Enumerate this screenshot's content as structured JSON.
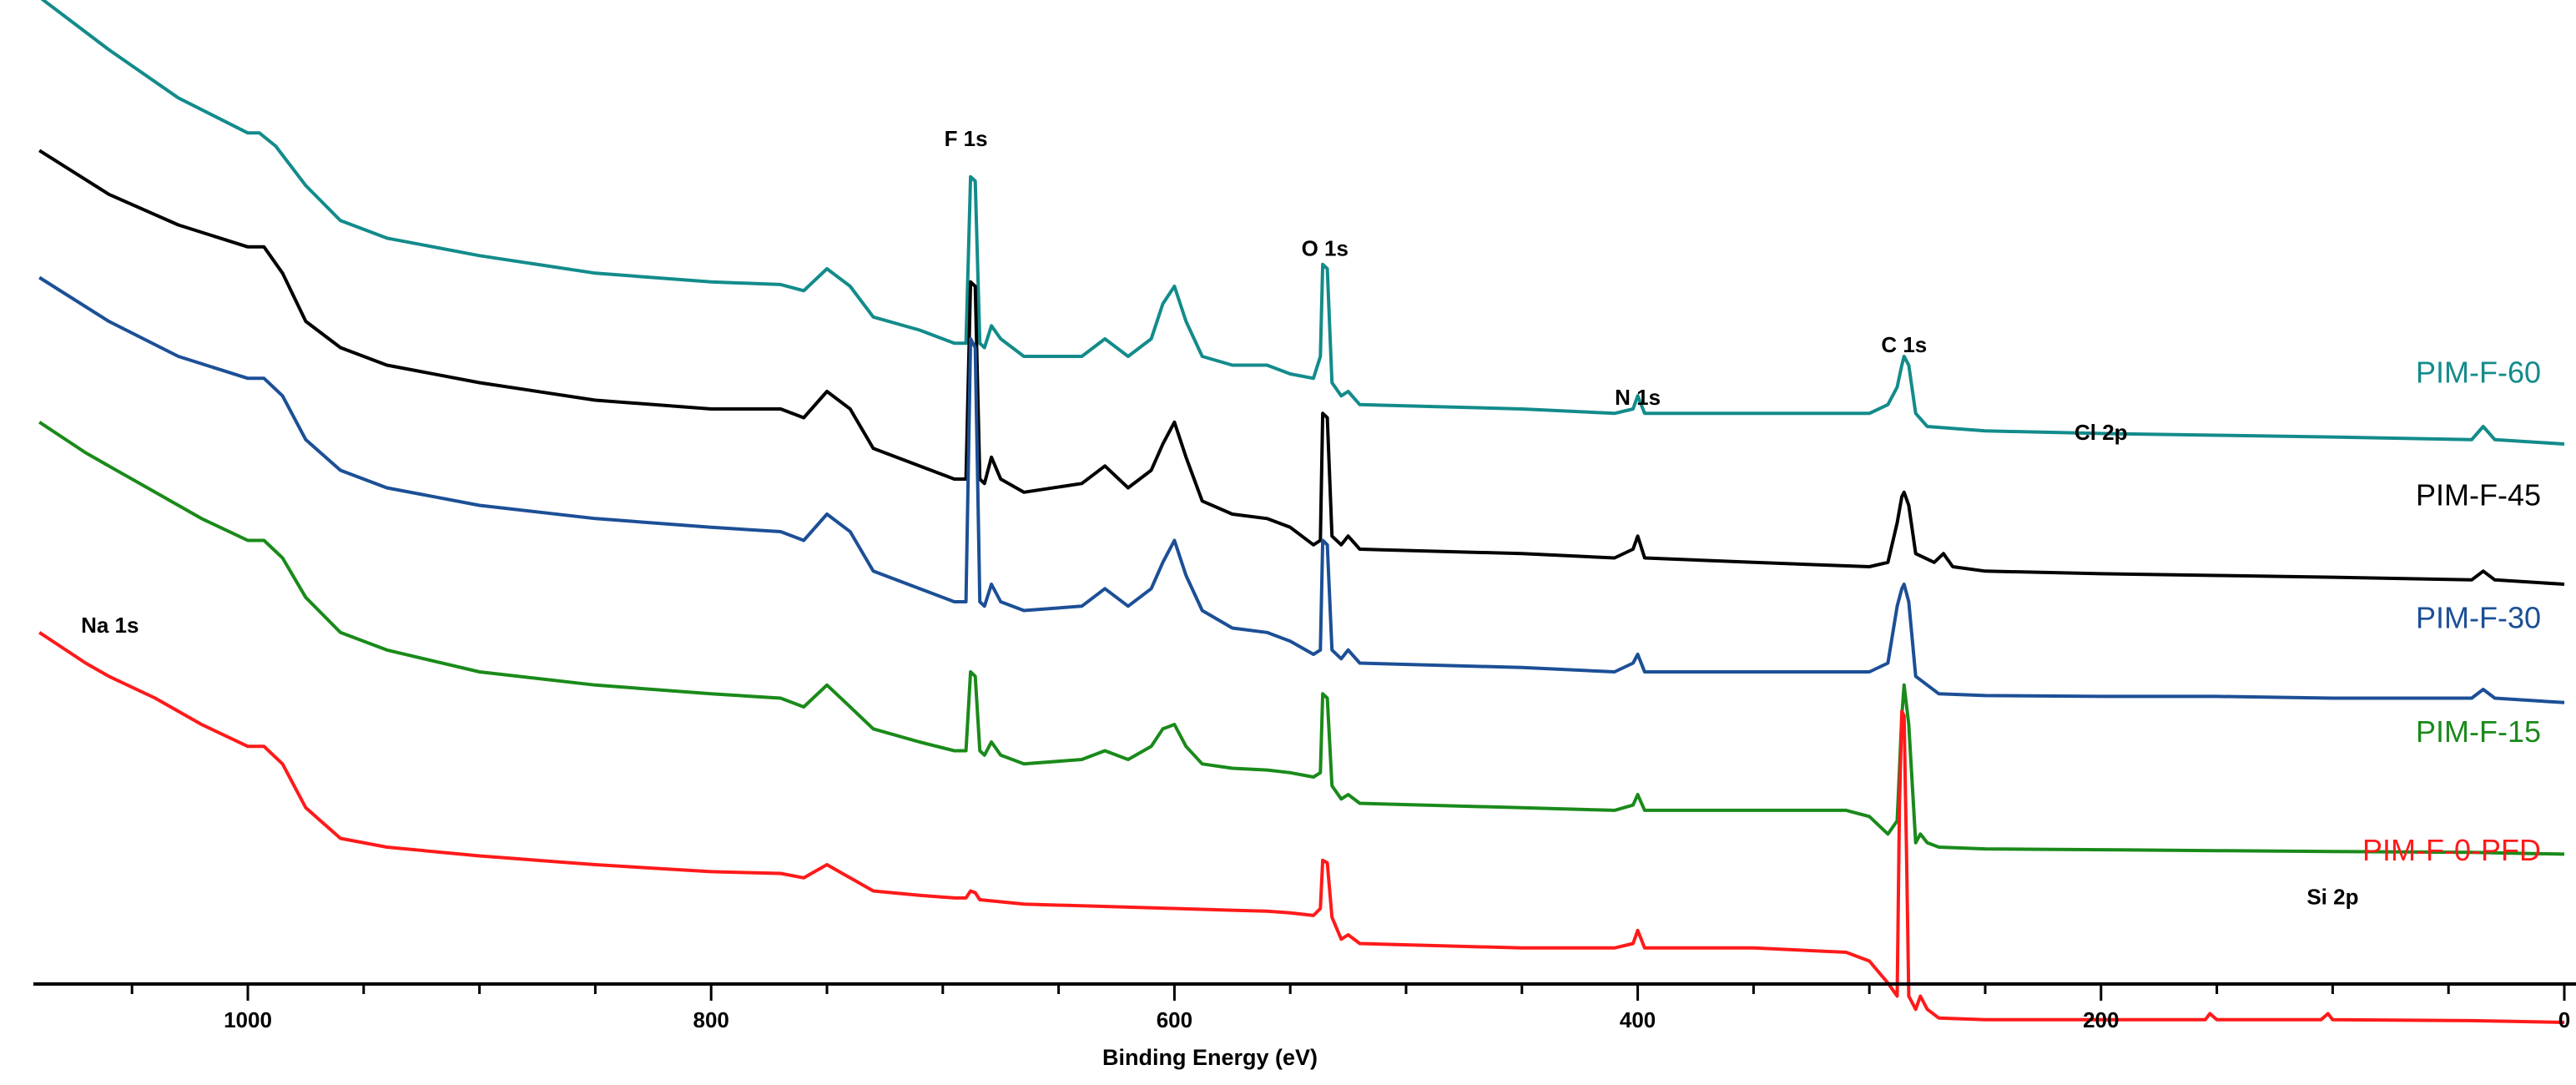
{
  "chart_data": {
    "type": "line",
    "title": "",
    "xlabel": "Binding Energy (eV)",
    "ylabel": "",
    "xlim": [
      1100,
      0
    ],
    "ylim": [
      0,
      10
    ],
    "grid": false,
    "x_ticks": [
      1000,
      800,
      600,
      400,
      200,
      0
    ],
    "x_tick_labels": [
      "1000",
      "800",
      "600",
      "400",
      "200",
      "0"
    ],
    "peak_labels": [
      {
        "text": "Na 1s",
        "x": 1072,
        "y": 3.45
      },
      {
        "text": "F 1s",
        "x": 690,
        "y": 9.0
      },
      {
        "text": "O 1s",
        "x": 535,
        "y": 7.75
      },
      {
        "text": "N 1s",
        "x": 400,
        "y": 6.05
      },
      {
        "text": "C 1s",
        "x": 285,
        "y": 6.65
      },
      {
        "text": "Cl 2p",
        "x": 200,
        "y": 5.65
      },
      {
        "text": "Si 2p",
        "x": 100,
        "y": 0.35
      }
    ],
    "series": [
      {
        "name": "PIM-F-60",
        "color": "#138b8b",
        "label_y": 6.3
      },
      {
        "name": "PIM-F-45",
        "color": "#000000",
        "label_y": 4.9
      },
      {
        "name": "PIM-F-30",
        "color": "#1c4f96",
        "label_y": 3.5
      },
      {
        "name": "PIM-F-15",
        "color": "#1a8a1a",
        "label_y": 2.2
      },
      {
        "name": "PIM-F-0-PFD",
        "color": "#ff1a1a",
        "label_y": 0.85
      }
    ],
    "curves": {
      "PIM-F-60": [
        [
          1090,
          10.7
        ],
        [
          1060,
          10.1
        ],
        [
          1030,
          9.55
        ],
        [
          1000,
          9.15
        ],
        [
          995,
          9.15
        ],
        [
          988,
          9.0
        ],
        [
          975,
          8.55
        ],
        [
          960,
          8.15
        ],
        [
          940,
          7.95
        ],
        [
          900,
          7.75
        ],
        [
          850,
          7.55
        ],
        [
          800,
          7.45
        ],
        [
          770,
          7.42
        ],
        [
          760,
          7.35
        ],
        [
          750,
          7.6
        ],
        [
          740,
          7.4
        ],
        [
          730,
          7.05
        ],
        [
          710,
          6.9
        ],
        [
          695,
          6.75
        ],
        [
          690,
          6.75
        ],
        [
          688,
          8.65
        ],
        [
          686,
          8.6
        ],
        [
          684,
          6.75
        ],
        [
          682,
          6.7
        ],
        [
          679,
          6.95
        ],
        [
          675,
          6.8
        ],
        [
          665,
          6.6
        ],
        [
          640,
          6.6
        ],
        [
          630,
          6.8
        ],
        [
          620,
          6.6
        ],
        [
          610,
          6.8
        ],
        [
          605,
          7.2
        ],
        [
          600,
          7.4
        ],
        [
          595,
          7.0
        ],
        [
          588,
          6.6
        ],
        [
          575,
          6.5
        ],
        [
          560,
          6.5
        ],
        [
          550,
          6.4
        ],
        [
          540,
          6.35
        ],
        [
          537,
          6.6
        ],
        [
          536,
          7.65
        ],
        [
          534,
          7.6
        ],
        [
          532,
          6.3
        ],
        [
          528,
          6.15
        ],
        [
          525,
          6.2
        ],
        [
          520,
          6.05
        ],
        [
          450,
          6.0
        ],
        [
          410,
          5.95
        ],
        [
          402,
          6.0
        ],
        [
          400,
          6.15
        ],
        [
          397,
          5.95
        ],
        [
          350,
          5.95
        ],
        [
          300,
          5.95
        ],
        [
          292,
          6.05
        ],
        [
          288,
          6.25
        ],
        [
          286,
          6.5
        ],
        [
          285,
          6.6
        ],
        [
          283,
          6.5
        ],
        [
          280,
          5.95
        ],
        [
          275,
          5.8
        ],
        [
          250,
          5.75
        ],
        [
          200,
          5.72
        ],
        [
          150,
          5.7
        ],
        [
          100,
          5.68
        ],
        [
          40,
          5.65
        ],
        [
          35,
          5.8
        ],
        [
          30,
          5.65
        ],
        [
          0,
          5.6
        ]
      ],
      "PIM-F-45": [
        [
          1090,
          8.95
        ],
        [
          1060,
          8.45
        ],
        [
          1030,
          8.1
        ],
        [
          1000,
          7.85
        ],
        [
          993,
          7.85
        ],
        [
          985,
          7.55
        ],
        [
          975,
          7.0
        ],
        [
          960,
          6.7
        ],
        [
          940,
          6.5
        ],
        [
          900,
          6.3
        ],
        [
          850,
          6.1
        ],
        [
          800,
          6.0
        ],
        [
          770,
          6.0
        ],
        [
          760,
          5.9
        ],
        [
          750,
          6.2
        ],
        [
          740,
          6.0
        ],
        [
          730,
          5.55
        ],
        [
          710,
          5.35
        ],
        [
          695,
          5.2
        ],
        [
          690,
          5.2
        ],
        [
          688,
          7.45
        ],
        [
          686,
          7.4
        ],
        [
          684,
          5.2
        ],
        [
          682,
          5.15
        ],
        [
          679,
          5.45
        ],
        [
          675,
          5.2
        ],
        [
          665,
          5.05
        ],
        [
          640,
          5.15
        ],
        [
          630,
          5.35
        ],
        [
          620,
          5.1
        ],
        [
          610,
          5.3
        ],
        [
          605,
          5.6
        ],
        [
          600,
          5.85
        ],
        [
          595,
          5.45
        ],
        [
          588,
          4.95
        ],
        [
          575,
          4.8
        ],
        [
          560,
          4.75
        ],
        [
          550,
          4.65
        ],
        [
          540,
          4.45
        ],
        [
          537,
          4.5
        ],
        [
          536,
          5.95
        ],
        [
          534,
          5.9
        ],
        [
          532,
          4.55
        ],
        [
          528,
          4.45
        ],
        [
          525,
          4.55
        ],
        [
          520,
          4.4
        ],
        [
          450,
          4.35
        ],
        [
          410,
          4.3
        ],
        [
          402,
          4.4
        ],
        [
          400,
          4.55
        ],
        [
          397,
          4.3
        ],
        [
          350,
          4.25
        ],
        [
          300,
          4.2
        ],
        [
          292,
          4.25
        ],
        [
          288,
          4.7
        ],
        [
          286,
          5.0
        ],
        [
          285,
          5.05
        ],
        [
          283,
          4.9
        ],
        [
          280,
          4.35
        ],
        [
          272,
          4.25
        ],
        [
          268,
          4.35
        ],
        [
          264,
          4.2
        ],
        [
          250,
          4.15
        ],
        [
          200,
          4.12
        ],
        [
          150,
          4.1
        ],
        [
          100,
          4.08
        ],
        [
          40,
          4.05
        ],
        [
          35,
          4.15
        ],
        [
          30,
          4.05
        ],
        [
          0,
          4.0
        ]
      ],
      "PIM-F-30": [
        [
          1090,
          7.5
        ],
        [
          1060,
          7.0
        ],
        [
          1030,
          6.6
        ],
        [
          1000,
          6.35
        ],
        [
          993,
          6.35
        ],
        [
          985,
          6.15
        ],
        [
          975,
          5.65
        ],
        [
          960,
          5.3
        ],
        [
          940,
          5.1
        ],
        [
          900,
          4.9
        ],
        [
          850,
          4.75
        ],
        [
          800,
          4.65
        ],
        [
          770,
          4.6
        ],
        [
          760,
          4.5
        ],
        [
          750,
          4.8
        ],
        [
          740,
          4.6
        ],
        [
          730,
          4.15
        ],
        [
          710,
          3.95
        ],
        [
          695,
          3.8
        ],
        [
          690,
          3.8
        ],
        [
          688,
          6.8
        ],
        [
          686,
          6.7
        ],
        [
          684,
          3.8
        ],
        [
          682,
          3.75
        ],
        [
          679,
          4.0
        ],
        [
          675,
          3.8
        ],
        [
          665,
          3.7
        ],
        [
          640,
          3.75
        ],
        [
          630,
          3.95
        ],
        [
          620,
          3.75
        ],
        [
          610,
          3.95
        ],
        [
          605,
          4.25
        ],
        [
          600,
          4.5
        ],
        [
          595,
          4.1
        ],
        [
          588,
          3.7
        ],
        [
          575,
          3.5
        ],
        [
          560,
          3.45
        ],
        [
          550,
          3.35
        ],
        [
          540,
          3.2
        ],
        [
          537,
          3.25
        ],
        [
          536,
          4.5
        ],
        [
          534,
          4.45
        ],
        [
          532,
          3.25
        ],
        [
          528,
          3.15
        ],
        [
          525,
          3.25
        ],
        [
          520,
          3.1
        ],
        [
          450,
          3.05
        ],
        [
          410,
          3.0
        ],
        [
          402,
          3.1
        ],
        [
          400,
          3.2
        ],
        [
          397,
          3.0
        ],
        [
          350,
          3.0
        ],
        [
          310,
          3.0
        ],
        [
          300,
          3.0
        ],
        [
          292,
          3.1
        ],
        [
          288,
          3.75
        ],
        [
          286,
          3.95
        ],
        [
          285,
          4.0
        ],
        [
          283,
          3.8
        ],
        [
          280,
          2.95
        ],
        [
          275,
          2.85
        ],
        [
          270,
          2.75
        ],
        [
          250,
          2.73
        ],
        [
          200,
          2.72
        ],
        [
          150,
          2.72
        ],
        [
          100,
          2.7
        ],
        [
          40,
          2.7
        ],
        [
          35,
          2.8
        ],
        [
          30,
          2.7
        ],
        [
          0,
          2.65
        ]
      ],
      "PIM-F-15": [
        [
          1090,
          5.85
        ],
        [
          1070,
          5.5
        ],
        [
          1060,
          5.35
        ],
        [
          1040,
          5.05
        ],
        [
          1020,
          4.75
        ],
        [
          1000,
          4.5
        ],
        [
          993,
          4.5
        ],
        [
          985,
          4.3
        ],
        [
          975,
          3.85
        ],
        [
          960,
          3.45
        ],
        [
          940,
          3.25
        ],
        [
          900,
          3.0
        ],
        [
          850,
          2.85
        ],
        [
          800,
          2.75
        ],
        [
          770,
          2.7
        ],
        [
          760,
          2.6
        ],
        [
          750,
          2.85
        ],
        [
          740,
          2.6
        ],
        [
          730,
          2.35
        ],
        [
          710,
          2.2
        ],
        [
          695,
          2.1
        ],
        [
          690,
          2.1
        ],
        [
          688,
          3.0
        ],
        [
          686,
          2.95
        ],
        [
          684,
          2.1
        ],
        [
          682,
          2.05
        ],
        [
          679,
          2.2
        ],
        [
          675,
          2.05
        ],
        [
          665,
          1.95
        ],
        [
          640,
          2.0
        ],
        [
          630,
          2.1
        ],
        [
          620,
          2.0
        ],
        [
          610,
          2.15
        ],
        [
          605,
          2.35
        ],
        [
          600,
          2.4
        ],
        [
          595,
          2.15
        ],
        [
          588,
          1.95
        ],
        [
          575,
          1.9
        ],
        [
          560,
          1.88
        ],
        [
          550,
          1.85
        ],
        [
          540,
          1.8
        ],
        [
          537,
          1.85
        ],
        [
          536,
          2.75
        ],
        [
          534,
          2.7
        ],
        [
          532,
          1.7
        ],
        [
          528,
          1.55
        ],
        [
          525,
          1.6
        ],
        [
          520,
          1.5
        ],
        [
          450,
          1.45
        ],
        [
          410,
          1.42
        ],
        [
          402,
          1.48
        ],
        [
          400,
          1.6
        ],
        [
          397,
          1.42
        ],
        [
          350,
          1.42
        ],
        [
          310,
          1.42
        ],
        [
          300,
          1.35
        ],
        [
          292,
          1.15
        ],
        [
          288,
          1.3
        ],
        [
          286,
          2.5
        ],
        [
          285,
          2.85
        ],
        [
          283,
          2.4
        ],
        [
          280,
          1.05
        ],
        [
          278,
          1.15
        ],
        [
          275,
          1.05
        ],
        [
          270,
          1.0
        ],
        [
          250,
          0.98
        ],
        [
          200,
          0.97
        ],
        [
          150,
          0.96
        ],
        [
          100,
          0.95
        ],
        [
          40,
          0.94
        ],
        [
          0,
          0.92
        ]
      ],
      "PIM-F-0-PFD": [
        [
          1090,
          3.45
        ],
        [
          1070,
          3.1
        ],
        [
          1060,
          2.95
        ],
        [
          1040,
          2.7
        ],
        [
          1020,
          2.4
        ],
        [
          1000,
          2.15
        ],
        [
          993,
          2.15
        ],
        [
          985,
          1.95
        ],
        [
          975,
          1.45
        ],
        [
          960,
          1.1
        ],
        [
          940,
          1.0
        ],
        [
          900,
          0.9
        ],
        [
          850,
          0.8
        ],
        [
          800,
          0.72
        ],
        [
          770,
          0.7
        ],
        [
          760,
          0.65
        ],
        [
          750,
          0.8
        ],
        [
          740,
          0.65
        ],
        [
          730,
          0.5
        ],
        [
          710,
          0.45
        ],
        [
          695,
          0.42
        ],
        [
          690,
          0.42
        ],
        [
          688,
          0.5
        ],
        [
          686,
          0.48
        ],
        [
          684,
          0.4
        ],
        [
          665,
          0.35
        ],
        [
          640,
          0.33
        ],
        [
          600,
          0.3
        ],
        [
          575,
          0.28
        ],
        [
          560,
          0.27
        ],
        [
          550,
          0.25
        ],
        [
          540,
          0.22
        ],
        [
          537,
          0.3
        ],
        [
          536,
          0.85
        ],
        [
          534,
          0.82
        ],
        [
          532,
          0.2
        ],
        [
          528,
          -0.05
        ],
        [
          525,
          0.0
        ],
        [
          520,
          -0.1
        ],
        [
          450,
          -0.15
        ],
        [
          410,
          -0.15
        ],
        [
          402,
          -0.1
        ],
        [
          400,
          0.05
        ],
        [
          397,
          -0.15
        ],
        [
          350,
          -0.15
        ],
        [
          310,
          -0.2
        ],
        [
          300,
          -0.3
        ],
        [
          292,
          -0.55
        ],
        [
          288,
          -0.7
        ],
        [
          287,
          1.5
        ],
        [
          286,
          2.55
        ],
        [
          285,
          2.5
        ],
        [
          284,
          1.0
        ],
        [
          283,
          -0.7
        ],
        [
          280,
          -0.85
        ],
        [
          278,
          -0.7
        ],
        [
          275,
          -0.85
        ],
        [
          270,
          -0.95
        ],
        [
          250,
          -0.97
        ],
        [
          200,
          -0.97
        ],
        [
          155,
          -0.97
        ],
        [
          153,
          -0.9
        ],
        [
          150,
          -0.97
        ],
        [
          105,
          -0.97
        ],
        [
          102,
          -0.9
        ],
        [
          100,
          -0.97
        ],
        [
          40,
          -0.98
        ],
        [
          0,
          -1.0
        ]
      ]
    }
  }
}
